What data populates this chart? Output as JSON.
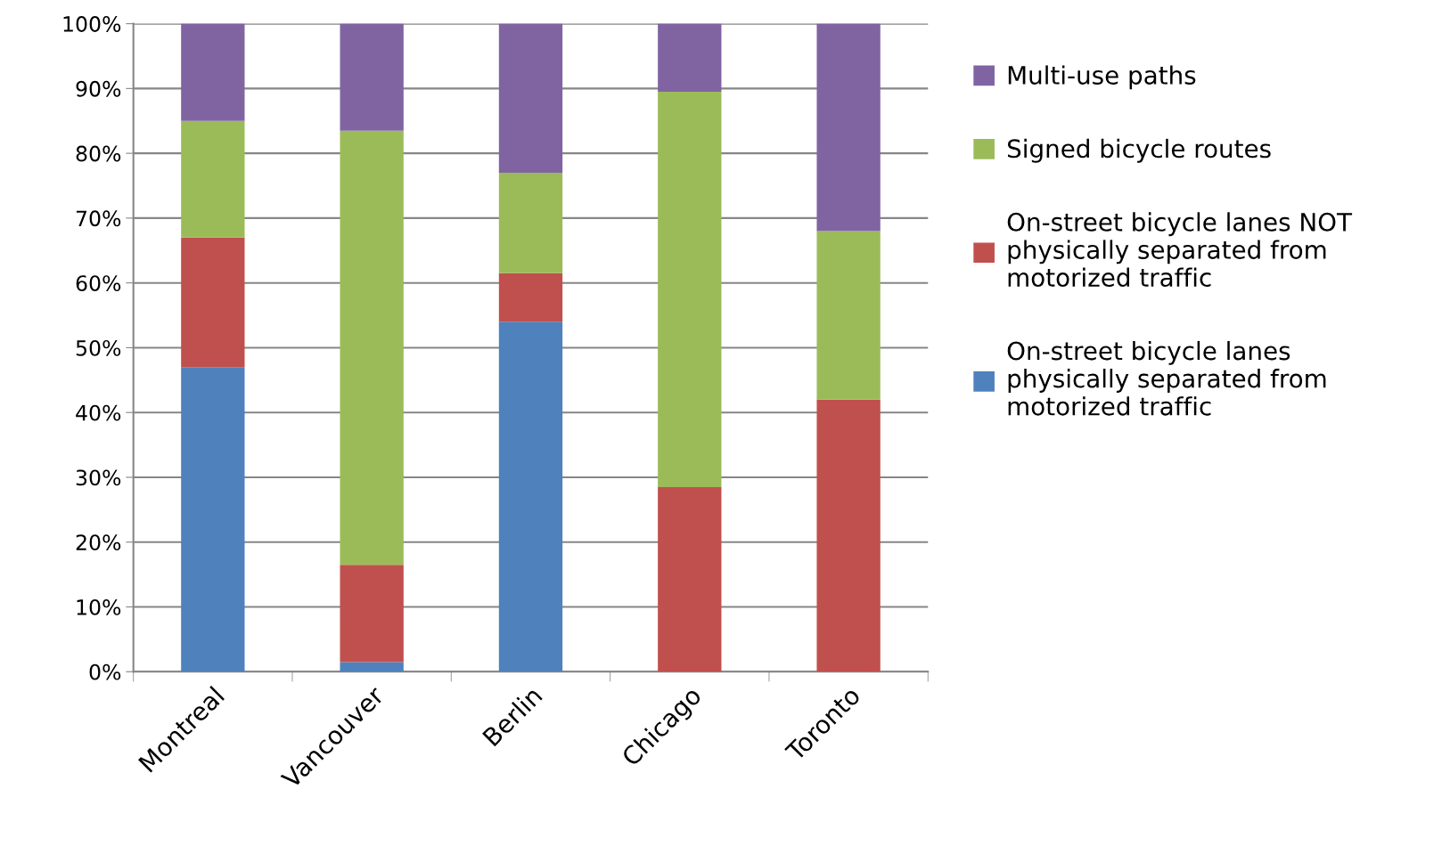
{
  "chart_data": {
    "type": "bar",
    "stacked": true,
    "categories": [
      "Montreal",
      "Vancouver",
      "Berlin",
      "Chicago",
      "Toronto"
    ],
    "series": [
      {
        "name": "On-street bicycle lanes physically separated from motorized traffic",
        "color": "#4f81bd",
        "values": [
          47,
          1.5,
          54,
          0,
          0
        ]
      },
      {
        "name": "On-street bicycle lanes NOT physically separated from motorized traffic",
        "color": "#c0504d",
        "values": [
          20,
          15,
          7.5,
          28.5,
          42
        ]
      },
      {
        "name": "Signed bicycle routes",
        "color": "#9bbb59",
        "values": [
          18,
          67,
          15.5,
          61,
          26
        ]
      },
      {
        "name": "Multi-use paths",
        "color": "#8064a2",
        "values": [
          15,
          16.5,
          23,
          10.5,
          32
        ]
      }
    ],
    "ylim": [
      0,
      100
    ],
    "yticks": [
      {
        "value": 0,
        "label": "0%"
      },
      {
        "value": 10,
        "label": "10%"
      },
      {
        "value": 20,
        "label": "20%"
      },
      {
        "value": 30,
        "label": "30%"
      },
      {
        "value": 40,
        "label": "40%"
      },
      {
        "value": 50,
        "label": "50%"
      },
      {
        "value": 60,
        "label": "60%"
      },
      {
        "value": 70,
        "label": "70%"
      },
      {
        "value": 80,
        "label": "80%"
      },
      {
        "value": 90,
        "label": "90%"
      },
      {
        "value": 100,
        "label": "100%"
      }
    ],
    "grid": "y",
    "legend": "right"
  }
}
